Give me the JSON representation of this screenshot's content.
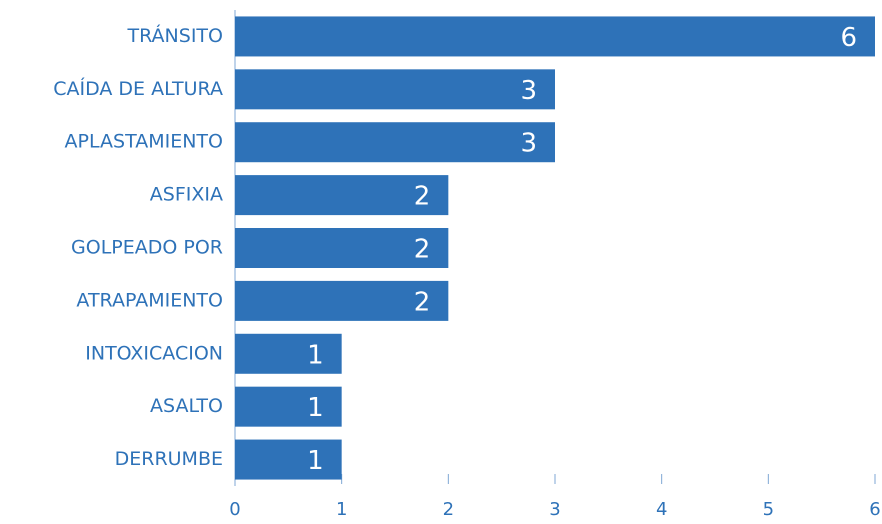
{
  "chart_data": {
    "type": "bar",
    "orientation": "horizontal",
    "categories": [
      "TRÁNSITO",
      "CAÍDA DE ALTURA",
      "APLASTAMIENTO",
      "ASFIXIA",
      "GOLPEADO POR",
      "ATRAPAMIENTO",
      "INTOXICACION",
      "ASALTO",
      "DERRUMBE"
    ],
    "values": [
      6,
      3,
      3,
      2,
      2,
      2,
      1,
      1,
      1
    ],
    "color": "#2e72b8",
    "xlim": [
      0,
      6
    ],
    "xticks": [
      0,
      1,
      2,
      3,
      4,
      5,
      6
    ],
    "grid": false
  }
}
